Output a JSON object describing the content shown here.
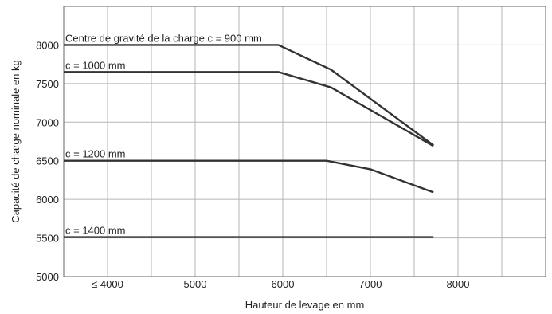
{
  "chart_data": {
    "type": "line",
    "xlabel": "Hauteur de levage en mm",
    "ylabel": "Capacité de charge nominale en kg",
    "xlim": [
      3500,
      9000
    ],
    "ylim": [
      5000,
      8500
    ],
    "x_ticks": [
      {
        "value": 4000,
        "label": "≤ 4000"
      },
      {
        "value": 5000,
        "label": "5000"
      },
      {
        "value": 6000,
        "label": "6000"
      },
      {
        "value": 7000,
        "label": "7000"
      },
      {
        "value": 8000,
        "label": "8000"
      }
    ],
    "x_grid": [
      4000,
      4500,
      5000,
      5500,
      6000,
      6500,
      7000,
      7500,
      8000,
      8500
    ],
    "y_ticks": [
      5000,
      5500,
      6000,
      6500,
      7000,
      7500,
      8000
    ],
    "y_grid": [
      5000,
      5500,
      6000,
      6500,
      7000,
      7500,
      8000
    ],
    "grid": true,
    "series": [
      {
        "name": "Centre de gravité de la charge c = 900 mm",
        "points": [
          [
            3500,
            8000
          ],
          [
            5950,
            8000
          ],
          [
            6550,
            7680
          ],
          [
            7720,
            6700
          ]
        ]
      },
      {
        "name": "c = 1000 mm",
        "points": [
          [
            3500,
            7650
          ],
          [
            5950,
            7650
          ],
          [
            6550,
            7450
          ],
          [
            7720,
            6690
          ]
        ]
      },
      {
        "name": "c = 1200 mm",
        "points": [
          [
            3500,
            6500
          ],
          [
            6500,
            6500
          ],
          [
            7000,
            6390
          ],
          [
            7720,
            6090
          ]
        ]
      },
      {
        "name": "c = 1400 mm",
        "points": [
          [
            3500,
            5510
          ],
          [
            7720,
            5510
          ]
        ]
      }
    ]
  }
}
